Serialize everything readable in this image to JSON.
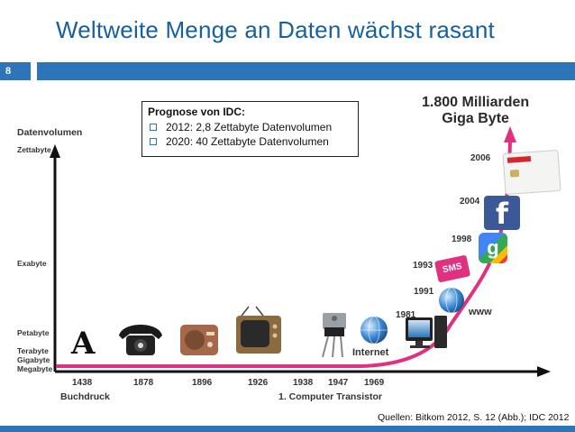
{
  "slide": {
    "title": "Weltweite Menge an Daten wächst rasant",
    "number": "8",
    "source": "Quellen: Bitkom 2012, S. 12 (Abb.); IDC 2012"
  },
  "forecast": {
    "heading": "Prognose von IDC:",
    "items": [
      "2012: 2,8 Zettabyte Datenvolumen",
      "2020: 40 Zettabyte Datenvolumen"
    ]
  },
  "diagram": {
    "y_axis_label": "Datenvolumen",
    "levels": [
      "Zettabyte",
      "Exabyte",
      "Petabyte",
      "Terabyte",
      "Gigabyte",
      "Megabyte"
    ],
    "peak_value": "1.800 Milliarden",
    "peak_unit": "Giga Byte",
    "timeline_years": [
      "1438",
      "1878",
      "1896",
      "1926",
      "1938",
      "1947",
      "1969"
    ],
    "timeline_captions": [
      "Buchdruck",
      "1. Computer Transistor"
    ],
    "curve_years": [
      "1981",
      "1991",
      "1993",
      "1998",
      "2004",
      "2006"
    ],
    "icon_labels": {
      "internet": "Internet",
      "www": "www",
      "sms": "SMS",
      "facebook": "f",
      "google": "g",
      "printing": "A"
    },
    "accent_color": "#e0307f",
    "brand_color": "#2d74b8"
  }
}
